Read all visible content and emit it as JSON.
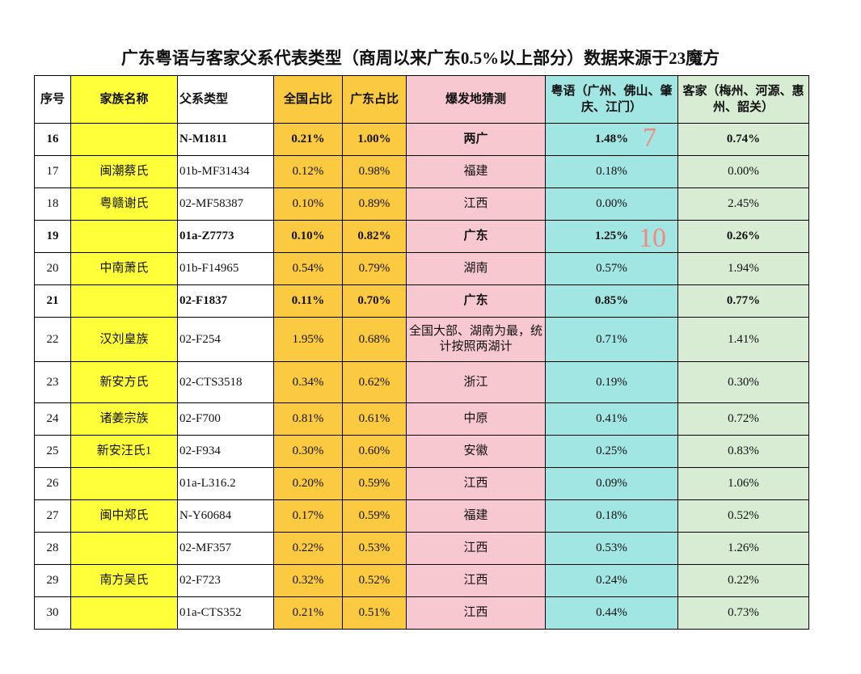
{
  "header": {
    "title": "广东粤语与客家父系代表类型（商周以来广东0.5%以上部分）数据来源于23魔方"
  },
  "table": {
    "columns": [
      "序号",
      "家族名称",
      "父系类型",
      "全国占比",
      "广东占比",
      "爆发地猜测",
      "粤语（广州、佛山、肇庆、江门）",
      "客家（梅州、河源、惠州、韶关）"
    ],
    "rows": [
      {
        "cells": [
          "16",
          null,
          "N-M1811",
          "0.21%",
          "1.00%",
          "两广",
          "1.48%",
          "0.74%"
        ],
        "bold": true
      },
      {
        "cells": [
          "17",
          "闽潮蔡氏",
          "01b-MF31434",
          "0.12%",
          "0.98%",
          "福建",
          "0.18%",
          "0.00%"
        ],
        "bold": false
      },
      {
        "cells": [
          "18",
          "粤赣谢氏",
          "02-MF58387",
          "0.10%",
          "0.89%",
          "江西",
          "0.00%",
          "2.45%"
        ],
        "bold": false
      },
      {
        "cells": [
          "19",
          null,
          "01a-Z7773",
          "0.10%",
          "0.82%",
          "广东",
          "1.25%",
          "0.26%"
        ],
        "bold": true
      },
      {
        "cells": [
          "20",
          "中南萧氏",
          "01b-F14965",
          "0.54%",
          "0.79%",
          "湖南",
          "0.57%",
          "1.94%"
        ],
        "bold": false
      },
      {
        "cells": [
          "21",
          null,
          "02-F1837",
          "0.11%",
          "0.70%",
          "广东",
          "0.85%",
          "0.77%"
        ],
        "bold": true
      },
      {
        "cells": [
          "22",
          "汉刘皇族",
          "02-F254",
          "1.95%",
          "0.68%",
          "全国大部、湖南为最，统计按照两湖计",
          "0.71%",
          "1.41%"
        ],
        "bold": false
      },
      {
        "cells": [
          "23",
          "新安方氏",
          "02-CTS3518",
          "0.34%",
          "0.62%",
          "浙江",
          "0.19%",
          "0.30%"
        ],
        "bold": false
      },
      {
        "cells": [
          "24",
          "诸姜宗族",
          "02-F700",
          "0.81%",
          "0.61%",
          "中原",
          "0.41%",
          "0.72%"
        ],
        "bold": false
      },
      {
        "cells": [
          "25",
          "新安汪氏1",
          "02-F934",
          "0.30%",
          "0.60%",
          "安徽",
          "0.25%",
          "0.83%"
        ],
        "bold": false
      },
      {
        "cells": [
          "26",
          null,
          "01a-L316.2",
          "0.20%",
          "0.59%",
          "江西",
          "0.09%",
          "1.06%"
        ],
        "bold": false
      },
      {
        "cells": [
          "27",
          "闽中郑氏",
          "N-Y60684",
          "0.17%",
          "0.59%",
          "福建",
          "0.18%",
          "0.52%"
        ],
        "bold": false
      },
      {
        "cells": [
          "28",
          null,
          "02-MF357",
          "0.22%",
          "0.53%",
          "江西",
          "0.53%",
          "1.26%"
        ],
        "bold": false
      },
      {
        "cells": [
          "29",
          "南方吴氏",
          "02-F723",
          "0.32%",
          "0.52%",
          "江西",
          "0.24%",
          "0.22%"
        ],
        "bold": false
      },
      {
        "cells": [
          "30",
          null,
          "01a-CTS352",
          "0.21%",
          "0.51%",
          "江西",
          "0.44%",
          "0.73%"
        ],
        "bold": false
      }
    ]
  },
  "annotations": [
    "7",
    "10"
  ]
}
